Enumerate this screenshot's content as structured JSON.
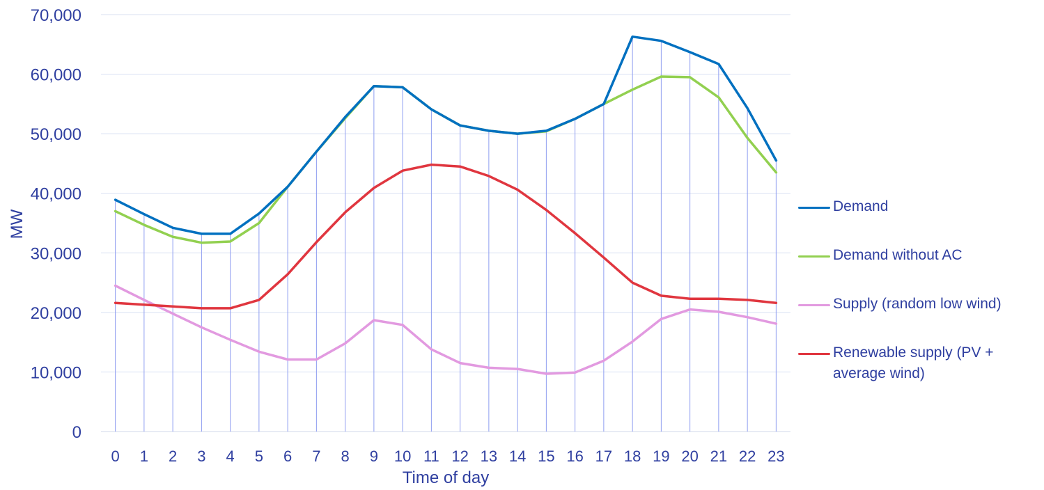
{
  "chart_data": {
    "type": "line",
    "title": "",
    "xlabel": "Time of day",
    "ylabel": "MW",
    "ylim": [
      0,
      70000
    ],
    "yticks": [
      "0",
      "10,000",
      "20,000",
      "30,000",
      "40,000",
      "50,000",
      "60,000",
      "70,000"
    ],
    "ytick_values": [
      0,
      10000,
      20000,
      30000,
      40000,
      50000,
      60000,
      70000
    ],
    "categories": [
      "0",
      "1",
      "2",
      "3",
      "4",
      "5",
      "6",
      "7",
      "8",
      "9",
      "10",
      "11",
      "12",
      "13",
      "14",
      "15",
      "16",
      "17",
      "18",
      "19",
      "20",
      "21",
      "22",
      "23"
    ],
    "grid": true,
    "legend_position": "right",
    "series": [
      {
        "name": "Demand",
        "color": "#0070C0",
        "values": [
          38900,
          36500,
          34200,
          33200,
          33200,
          36600,
          41100,
          47000,
          52800,
          58000,
          57800,
          54100,
          51400,
          50500,
          50000,
          50500,
          52500,
          55000,
          66300,
          65600,
          63700,
          61700,
          54300,
          45500
        ]
      },
      {
        "name": "Demand without AC",
        "color": "#92D050",
        "values": [
          37000,
          34700,
          32700,
          31700,
          31900,
          35000,
          41100,
          47000,
          52600,
          58000,
          57800,
          54100,
          51400,
          50500,
          50000,
          50400,
          52500,
          55000,
          57400,
          59600,
          59500,
          56100,
          49300,
          43500
        ]
      },
      {
        "name": "Supply (random low wind)",
        "color": "#E29AE0",
        "values": [
          24500,
          22100,
          19800,
          17500,
          15400,
          13400,
          12100,
          12100,
          14800,
          18700,
          17900,
          13800,
          11500,
          10700,
          10500,
          9700,
          9900,
          11900,
          15100,
          18900,
          20500,
          20100,
          19200,
          18100
        ]
      },
      {
        "name": "Renewable supply (PV + average wind)",
        "color": "#E0363F",
        "values": [
          21600,
          21300,
          21000,
          20700,
          20700,
          22100,
          26400,
          31800,
          36800,
          40900,
          43800,
          44800,
          44500,
          42900,
          40600,
          37200,
          33300,
          29200,
          25000,
          22800,
          22300,
          22300,
          22100,
          21600
        ]
      }
    ]
  }
}
